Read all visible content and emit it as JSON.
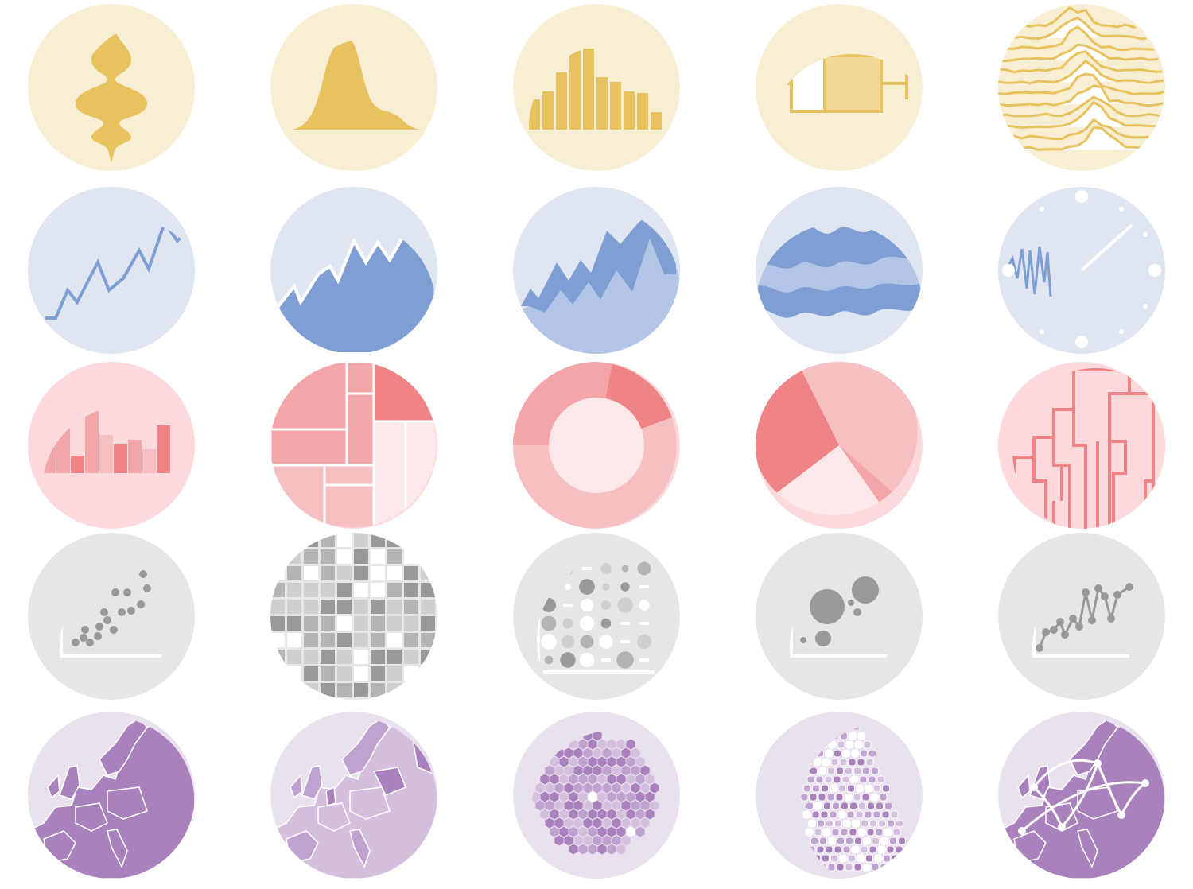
{
  "palette": {
    "distribution": {
      "bg": "#f8eed3",
      "main": "#e8c25e",
      "light": "#f2d894",
      "white": "#ffffff"
    },
    "evolution": {
      "bg": "#dfe5f1",
      "main": "#7f9ed3",
      "mid": "#95aed9",
      "light": "#b3c5e6",
      "white": "#ffffff"
    },
    "proportion": {
      "bg": "#fbd9dc",
      "main": "#ee8486",
      "mid": "#f3a5a7",
      "light": "#f6bfc1",
      "pale": "#fce8e9",
      "white": "#ffffff"
    },
    "correlation": {
      "bg": "#e6e6e6",
      "main": "#999999",
      "mid": "#b4b4b4",
      "light": "#cfcfcf",
      "white": "#ffffff"
    },
    "map": {
      "bg": "#e9e1ee",
      "main": "#a982bd",
      "mid": "#bfa2cf",
      "light": "#d4c0de",
      "white": "#ffffff"
    }
  },
  "rows": [
    {
      "group": "distribution",
      "icons": [
        {
          "name": "violin-icon"
        },
        {
          "name": "density-icon"
        },
        {
          "name": "histogram-icon"
        },
        {
          "name": "boxplot-icon"
        },
        {
          "name": "ridgeline-icon"
        }
      ]
    },
    {
      "group": "evolution",
      "icons": [
        {
          "name": "line-chart-icon"
        },
        {
          "name": "area-chart-icon"
        },
        {
          "name": "stacked-area-icon"
        },
        {
          "name": "streamgraph-icon"
        },
        {
          "name": "time-series-icon"
        }
      ]
    },
    {
      "group": "proportion",
      "icons": [
        {
          "name": "barplot-icon"
        },
        {
          "name": "treemap-icon"
        },
        {
          "name": "donut-icon"
        },
        {
          "name": "pie-chart-icon"
        },
        {
          "name": "dendrogram-icon"
        }
      ]
    },
    {
      "group": "correlation",
      "icons": [
        {
          "name": "scatter-icon"
        },
        {
          "name": "heatmap-icon"
        },
        {
          "name": "correlogram-icon"
        },
        {
          "name": "bubble-icon"
        },
        {
          "name": "connected-scatter-icon"
        }
      ]
    },
    {
      "group": "map",
      "icons": [
        {
          "name": "map-icon"
        },
        {
          "name": "choropleth-icon"
        },
        {
          "name": "hexbin-map-icon"
        },
        {
          "name": "cartogram-icon"
        },
        {
          "name": "connection-map-icon"
        }
      ]
    }
  ]
}
